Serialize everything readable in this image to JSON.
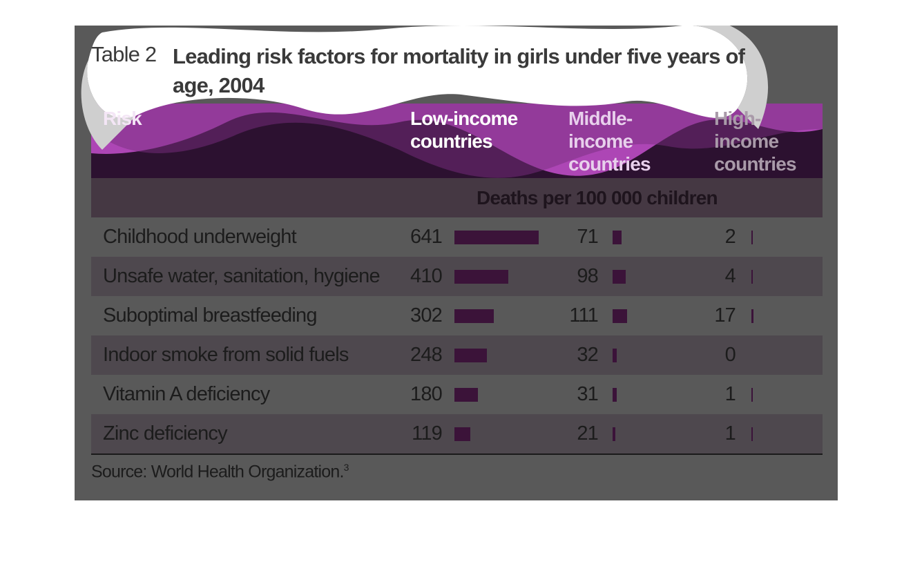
{
  "header": {
    "label": "Table 2",
    "title": "Leading risk factors for mortality in girls under five years of age, 2004"
  },
  "table": {
    "columns": [
      "Risk",
      "Low-income countries",
      "Middle-income countries",
      "High-income countries"
    ],
    "unit": "Deaths per 100 000 children",
    "rows": [
      {
        "risk": "Childhood underweight",
        "values": [
          641,
          71,
          2
        ]
      },
      {
        "risk": "Unsafe water, sanitation, hygiene",
        "values": [
          410,
          98,
          4
        ]
      },
      {
        "risk": "Suboptimal breastfeeding",
        "values": [
          302,
          111,
          17
        ]
      },
      {
        "risk": "Indoor smoke from solid fuels",
        "values": [
          248,
          32,
          0
        ]
      },
      {
        "risk": "Vitamin A deficiency",
        "values": [
          180,
          31,
          1
        ]
      },
      {
        "risk": "Zinc deficiency",
        "values": [
          119,
          21,
          1
        ]
      }
    ]
  },
  "footer": {
    "source": "Source: World Health Organization.",
    "note": "3"
  }
}
